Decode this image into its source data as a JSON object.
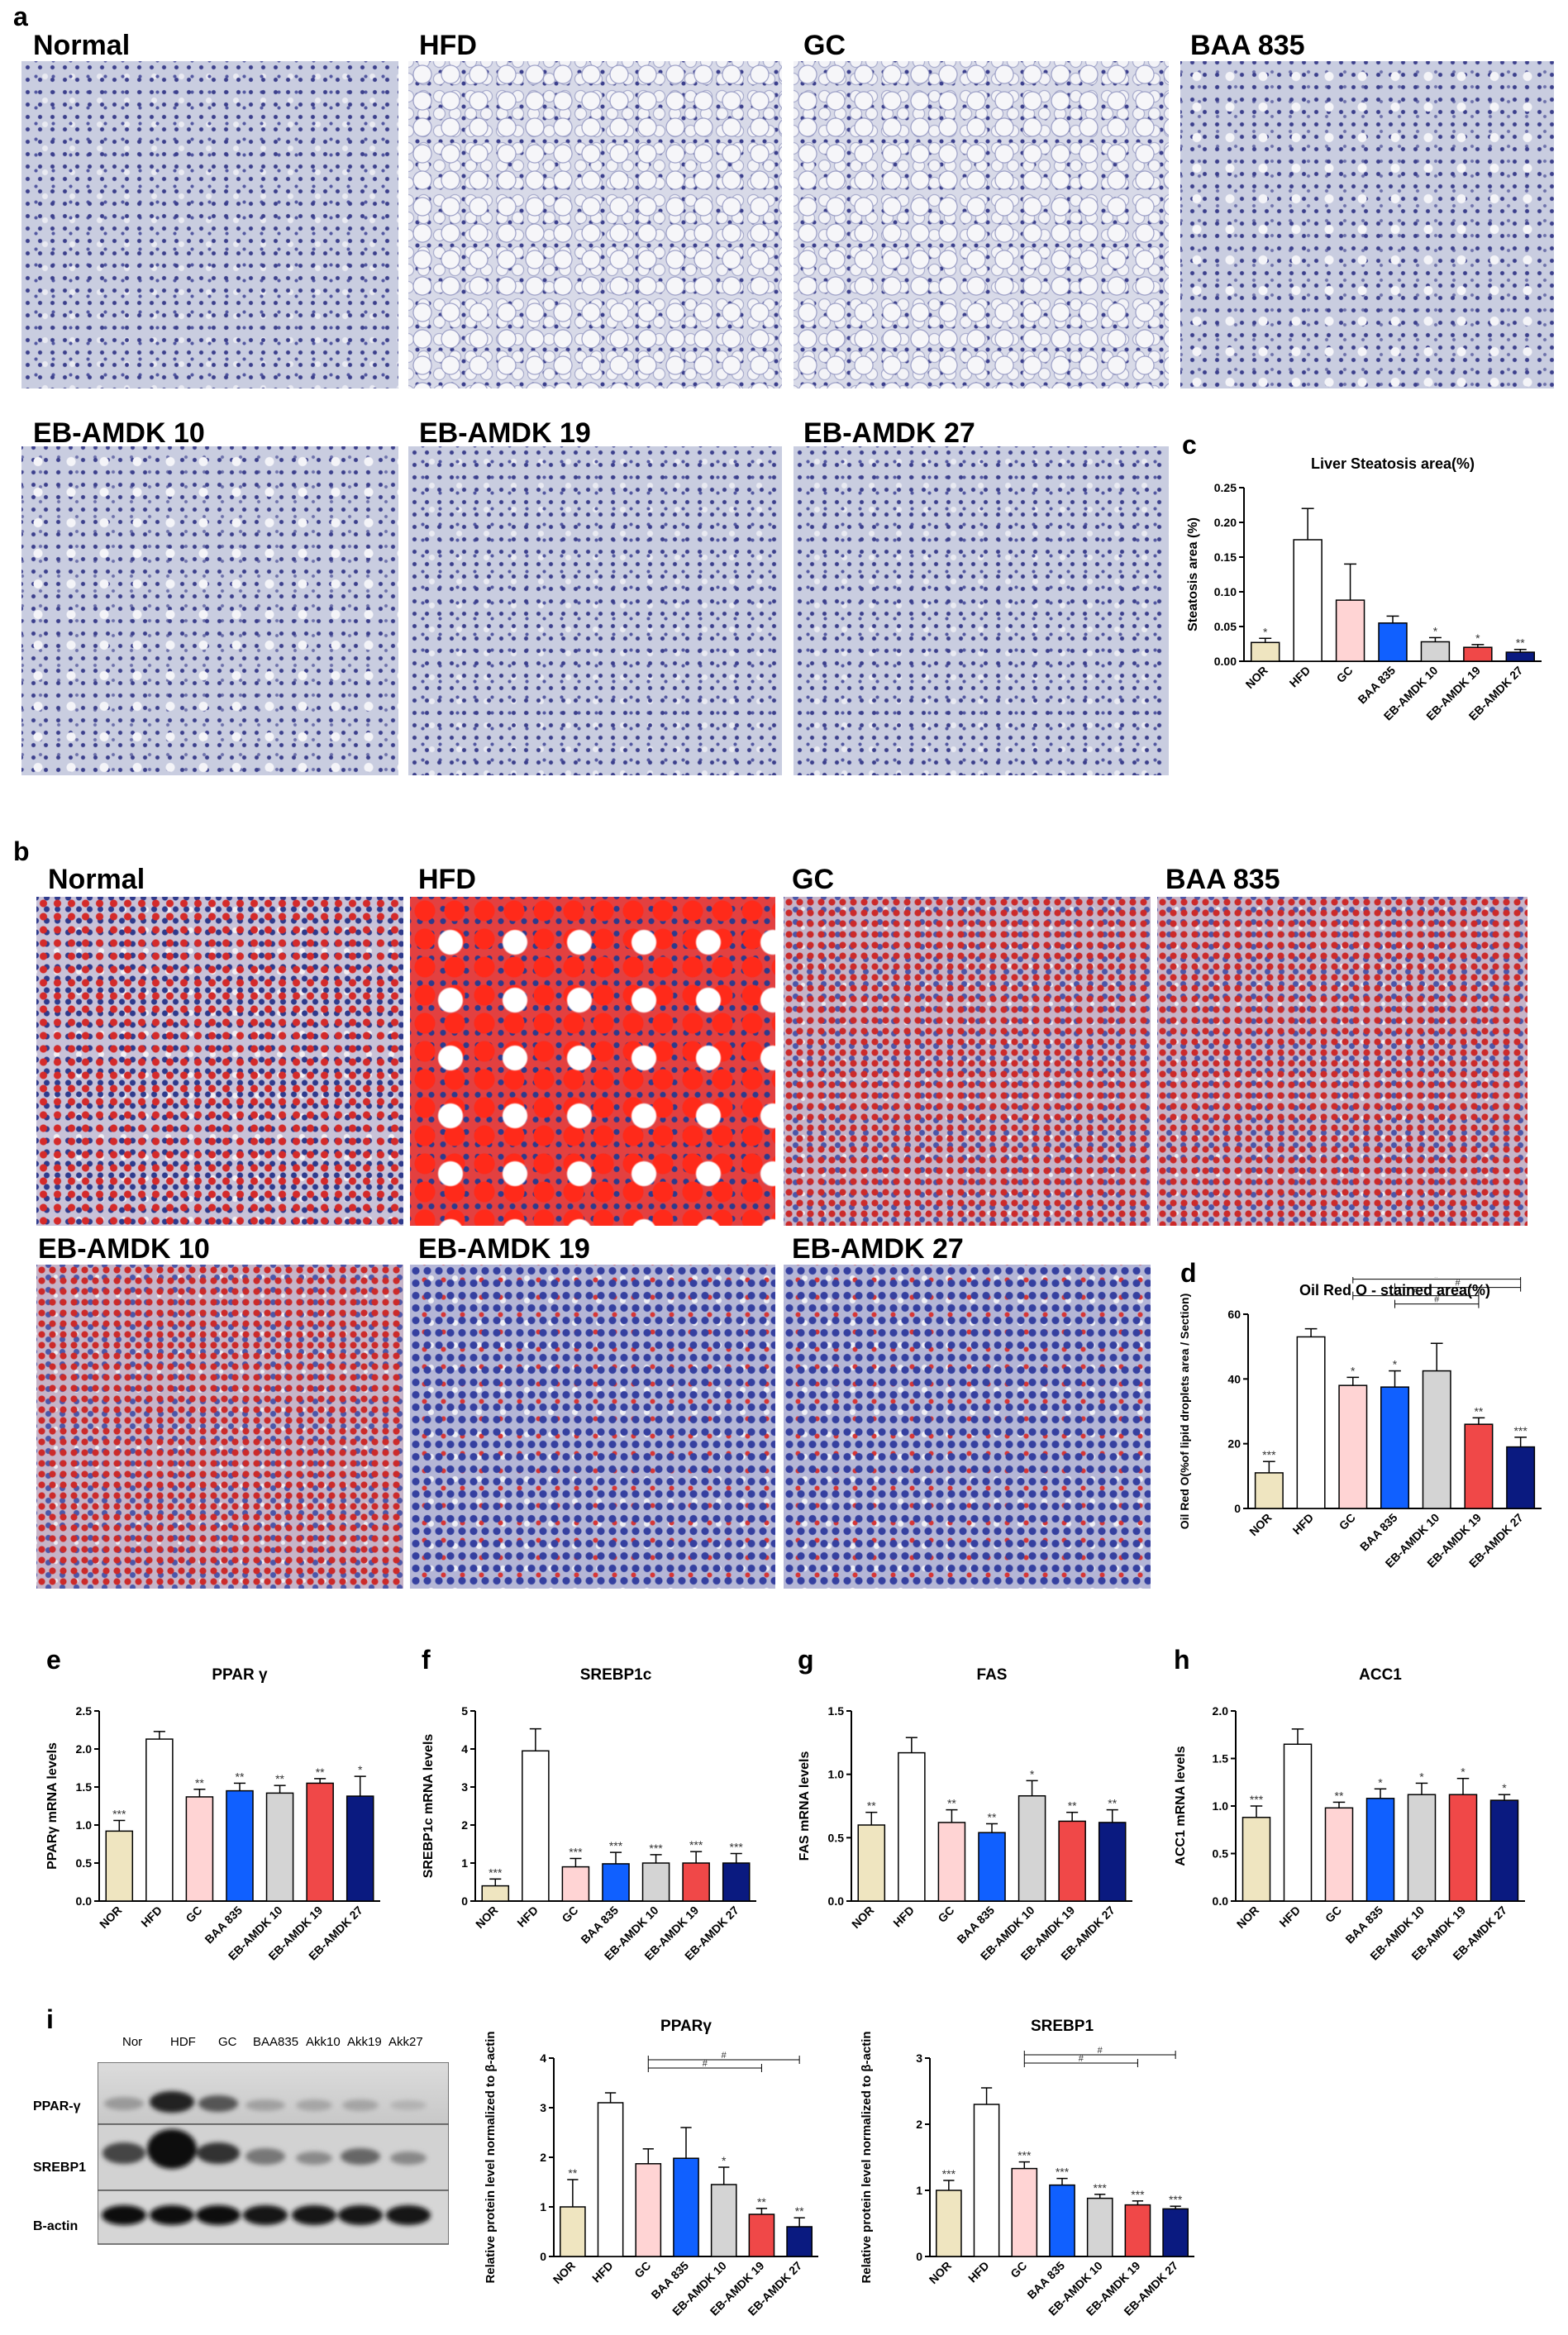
{
  "panel_labels": {
    "a": "a",
    "b": "b",
    "c": "c",
    "d": "d",
    "e": "e",
    "f": "f",
    "g": "g",
    "h": "h",
    "i": "i"
  },
  "panel_a": {
    "tiles": [
      "Normal",
      "HFD",
      "GC",
      "BAA 835",
      "EB-AMDK 10",
      "EB-AMDK 19",
      "EB-AMDK 27"
    ]
  },
  "panel_b": {
    "tiles": [
      "Normal",
      "HFD",
      "GC",
      "BAA 835",
      "EB-AMDK 10",
      "EB-AMDK 19",
      "EB-AMDK 27"
    ]
  },
  "western_blot": {
    "lanes": [
      "Nor",
      "HDF",
      "GC",
      "BAA835",
      "Akk10",
      "Akk19",
      "Akk27"
    ],
    "rows": [
      "PPAR-γ",
      "SREBP1",
      "B-actin"
    ]
  },
  "bar_colors": [
    "#efe5c0",
    "#ffffff",
    "#ffd4d4",
    "#1060ff",
    "#d4d4d4",
    "#f04848",
    "#0a1a80"
  ],
  "chart_data": [
    {
      "id": "c",
      "type": "bar",
      "title": "Liver Steatosis area(%)",
      "ylabel": "Steatosis area (%)",
      "categories": [
        "NOR",
        "HFD",
        "GC",
        "BAA 835",
        "EB-AMDK 10",
        "EB-AMDK 19",
        "EB-AMDK 27"
      ],
      "values": [
        0.027,
        0.175,
        0.088,
        0.055,
        0.028,
        0.02,
        0.013
      ],
      "errors": [
        0.006,
        0.045,
        0.052,
        0.01,
        0.006,
        0.004,
        0.004
      ],
      "sig": [
        "*",
        "",
        "",
        "",
        "*",
        "*",
        "**"
      ],
      "ylim": [
        0,
        0.25
      ],
      "ticks": [
        0,
        0.05,
        0.1,
        0.15,
        0.2,
        0.25
      ],
      "tick_labels": [
        "0.00",
        "0.05",
        "0.10",
        "0.15",
        "0.20",
        "0.25"
      ],
      "brackets": []
    },
    {
      "id": "d",
      "type": "bar",
      "title": "Oil Red O - stained area(%)",
      "ylabel": "Oil Red O(%of lipid droplets area / Section)",
      "categories": [
        "NOR",
        "HFD",
        "GC",
        "BAA 835",
        "EB-AMDK 10",
        "EB-AMDK 19",
        "EB-AMDK 27"
      ],
      "values": [
        11,
        53,
        38,
        37.5,
        42.5,
        26,
        19
      ],
      "errors": [
        3.5,
        2.5,
        2.5,
        5,
        8.5,
        2,
        3
      ],
      "sig": [
        "***",
        "",
        "*",
        "*",
        "",
        "**",
        "***"
      ],
      "ylim": [
        0,
        60
      ],
      "ticks": [
        0,
        20,
        40,
        60
      ],
      "tick_labels": [
        "0",
        "20",
        "40",
        "60"
      ],
      "brackets": [
        {
          "from": 2,
          "to": 6,
          "label": "#"
        },
        {
          "from": 3,
          "to": 6,
          "label": "#"
        },
        {
          "from": 2,
          "to": 5,
          "label": "#"
        },
        {
          "from": 3,
          "to": 5,
          "label": "#"
        }
      ]
    },
    {
      "id": "e",
      "type": "bar",
      "title": "PPAR γ",
      "ylabel": "PPARγ mRNA levels",
      "categories": [
        "NOR",
        "HFD",
        "GC",
        "BAA 835",
        "EB-AMDK 10",
        "EB-AMDK 19",
        "EB-AMDK 27"
      ],
      "values": [
        0.92,
        2.13,
        1.37,
        1.45,
        1.42,
        1.55,
        1.38
      ],
      "errors": [
        0.14,
        0.1,
        0.1,
        0.1,
        0.1,
        0.06,
        0.26
      ],
      "sig": [
        "***",
        "",
        "**",
        "**",
        "**",
        "**",
        "*"
      ],
      "ylim": [
        0,
        2.5
      ],
      "ticks": [
        0,
        0.5,
        1,
        1.5,
        2,
        2.5
      ],
      "tick_labels": [
        "0.0",
        "0.5",
        "1.0",
        "1.5",
        "2.0",
        "2.5"
      ],
      "brackets": []
    },
    {
      "id": "f",
      "type": "bar",
      "title": "SREBP1c",
      "ylabel": "SREBP1c mRNA levels",
      "categories": [
        "NOR",
        "HFD",
        "GC",
        "BAA 835",
        "EB-AMDK 10",
        "EB-AMDK 19",
        "EB-AMDK 27"
      ],
      "values": [
        0.4,
        3.95,
        0.9,
        0.98,
        1.0,
        1.0,
        1.0
      ],
      "errors": [
        0.18,
        0.58,
        0.22,
        0.3,
        0.22,
        0.3,
        0.25
      ],
      "sig": [
        "***",
        "",
        "***",
        "***",
        "***",
        "***",
        "***"
      ],
      "ylim": [
        0,
        5
      ],
      "ticks": [
        0,
        1,
        2,
        3,
        4,
        5
      ],
      "tick_labels": [
        "0",
        "1",
        "2",
        "3",
        "4",
        "5"
      ],
      "brackets": []
    },
    {
      "id": "g",
      "type": "bar",
      "title": "FAS",
      "ylabel": "FAS mRNA levels",
      "categories": [
        "NOR",
        "HFD",
        "GC",
        "BAA 835",
        "EB-AMDK 10",
        "EB-AMDK 19",
        "EB-AMDK 27"
      ],
      "values": [
        0.6,
        1.17,
        0.62,
        0.54,
        0.83,
        0.63,
        0.62
      ],
      "errors": [
        0.1,
        0.12,
        0.1,
        0.07,
        0.12,
        0.07,
        0.1
      ],
      "sig": [
        "**",
        "",
        "**",
        "**",
        "*",
        "**",
        "**"
      ],
      "ylim": [
        0,
        1.5
      ],
      "ticks": [
        0,
        0.5,
        1,
        1.5
      ],
      "tick_labels": [
        "0.0",
        "0.5",
        "1.0",
        "1.5"
      ],
      "brackets": []
    },
    {
      "id": "h",
      "type": "bar",
      "title": "ACC1",
      "ylabel": "ACC1 mRNA levels",
      "categories": [
        "NOR",
        "HFD",
        "GC",
        "BAA 835",
        "EB-AMDK 10",
        "EB-AMDK 19",
        "EB-AMDK 27"
      ],
      "values": [
        0.88,
        1.65,
        0.98,
        1.08,
        1.12,
        1.12,
        1.06
      ],
      "errors": [
        0.12,
        0.16,
        0.06,
        0.1,
        0.12,
        0.17,
        0.06
      ],
      "sig": [
        "***",
        "",
        "**",
        "*",
        "*",
        "*",
        "*"
      ],
      "ylim": [
        0,
        2
      ],
      "ticks": [
        0,
        0.5,
        1,
        1.5,
        2
      ],
      "tick_labels": [
        "0.0",
        "0.5",
        "1.0",
        "1.5",
        "2.0"
      ],
      "brackets": []
    },
    {
      "id": "i1",
      "type": "bar",
      "title": "PPARγ",
      "ylabel": "Relative protein level normalized to β-actin",
      "categories": [
        "NOR",
        "HFD",
        "GC",
        "BAA 835",
        "EB-AMDK 10",
        "EB-AMDK 19",
        "EB-AMDK 27"
      ],
      "values": [
        1.0,
        3.1,
        1.87,
        1.98,
        1.45,
        0.85,
        0.6
      ],
      "errors": [
        0.55,
        0.2,
        0.3,
        0.62,
        0.35,
        0.12,
        0.18
      ],
      "sig": [
        "**",
        "",
        "",
        "",
        "*",
        "**",
        "**"
      ],
      "ylim": [
        0,
        4
      ],
      "ticks": [
        0,
        1,
        2,
        3,
        4
      ],
      "tick_labels": [
        "0",
        "1",
        "2",
        "3",
        "4"
      ],
      "brackets": [
        {
          "from": 2,
          "to": 6,
          "label": "#"
        },
        {
          "from": 2,
          "to": 5,
          "label": "#"
        }
      ]
    },
    {
      "id": "i2",
      "type": "bar",
      "title": "SREBP1",
      "ylabel": "Relative protein level normalized to β-actin",
      "categories": [
        "NOR",
        "HFD",
        "GC",
        "BAA 835",
        "EB-AMDK 10",
        "EB-AMDK 19",
        "EB-AMDK 27"
      ],
      "values": [
        1.0,
        2.3,
        1.33,
        1.08,
        0.88,
        0.78,
        0.72
      ],
      "errors": [
        0.15,
        0.25,
        0.1,
        0.1,
        0.06,
        0.06,
        0.04
      ],
      "sig": [
        "***",
        "",
        "***",
        "***",
        "***",
        "***",
        "***"
      ],
      "ylim": [
        0,
        3
      ],
      "ticks": [
        0,
        1,
        2,
        3
      ],
      "tick_labels": [
        "0",
        "1",
        "2",
        "3"
      ],
      "brackets": [
        {
          "from": 2,
          "to": 6,
          "label": "#"
        },
        {
          "from": 2,
          "to": 5,
          "label": "#"
        }
      ]
    }
  ]
}
